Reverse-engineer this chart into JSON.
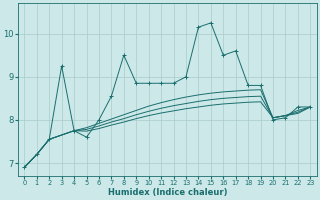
{
  "xlabel": "Humidex (Indice chaleur)",
  "xlim": [
    -0.5,
    23.5
  ],
  "ylim": [
    6.7,
    10.7
  ],
  "yticks": [
    7,
    8,
    9,
    10
  ],
  "xticks": [
    0,
    1,
    2,
    3,
    4,
    5,
    6,
    7,
    8,
    9,
    10,
    11,
    12,
    13,
    14,
    15,
    16,
    17,
    18,
    19,
    20,
    21,
    22,
    23
  ],
  "bg_color": "#cce8e8",
  "grid_color": "#aacccc",
  "line_color": "#1a6e6e",
  "series_main": [
    6.9,
    7.2,
    7.55,
    9.25,
    7.75,
    7.6,
    8.0,
    8.55,
    9.5,
    8.85,
    8.85,
    8.85,
    8.85,
    9.0,
    10.15,
    10.25,
    9.5,
    9.6,
    8.8,
    8.8,
    8.0,
    8.05,
    8.3,
    8.3
  ],
  "series_smooth": [
    [
      6.9,
      7.2,
      7.55,
      7.65,
      7.75,
      7.82,
      7.92,
      8.02,
      8.12,
      8.22,
      8.32,
      8.4,
      8.47,
      8.53,
      8.58,
      8.62,
      8.65,
      8.67,
      8.69,
      8.7,
      8.05,
      8.1,
      8.22,
      8.3
    ],
    [
      6.9,
      7.2,
      7.55,
      7.65,
      7.75,
      7.78,
      7.86,
      7.95,
      8.03,
      8.12,
      8.2,
      8.27,
      8.33,
      8.38,
      8.43,
      8.47,
      8.5,
      8.52,
      8.54,
      8.55,
      8.05,
      8.1,
      8.18,
      8.3
    ],
    [
      6.9,
      7.2,
      7.55,
      7.65,
      7.75,
      7.74,
      7.8,
      7.88,
      7.95,
      8.03,
      8.1,
      8.16,
      8.21,
      8.26,
      8.3,
      8.34,
      8.37,
      8.39,
      8.41,
      8.42,
      8.05,
      8.1,
      8.15,
      8.3
    ]
  ],
  "figsize": [
    3.2,
    2.0
  ],
  "dpi": 100
}
